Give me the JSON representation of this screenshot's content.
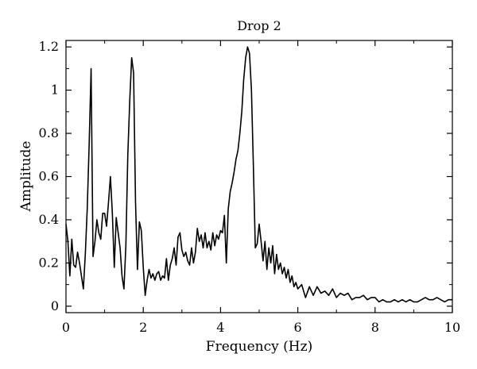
{
  "chart_data": {
    "type": "line",
    "title": "Drop 2",
    "xlabel": "Frequency (Hz)",
    "ylabel": "Amplitude",
    "xlim": [
      0,
      10
    ],
    "ylim": [
      -0.03,
      1.23
    ],
    "x_ticks": [
      0,
      2,
      4,
      6,
      8,
      10
    ],
    "x_tick_labels": [
      "0",
      "2",
      "4",
      "6",
      "8",
      "10"
    ],
    "y_ticks": [
      0,
      0.2,
      0.4,
      0.6,
      0.8,
      1,
      1.2
    ],
    "y_tick_labels": [
      "0",
      "0.2",
      "0.4",
      "0.6",
      "0.8",
      "1",
      "1.2"
    ],
    "grid": false,
    "legend": "none",
    "line_color": "#000000",
    "series": [
      {
        "x": [
          0.0,
          0.05,
          0.1,
          0.15,
          0.2,
          0.25,
          0.3,
          0.35,
          0.4,
          0.45,
          0.5,
          0.55,
          0.6,
          0.65,
          0.7,
          0.75,
          0.8,
          0.85,
          0.9,
          0.95,
          1.0,
          1.05,
          1.1,
          1.15,
          1.2,
          1.25,
          1.3,
          1.35,
          1.4,
          1.45,
          1.5,
          1.55,
          1.6,
          1.65,
          1.7,
          1.75,
          1.8,
          1.85,
          1.9,
          1.95,
          2.0,
          2.05,
          2.1,
          2.15,
          2.2,
          2.25,
          2.3,
          2.35,
          2.4,
          2.45,
          2.5,
          2.55,
          2.6,
          2.65,
          2.7,
          2.75,
          2.8,
          2.85,
          2.9,
          2.95,
          3.0,
          3.05,
          3.1,
          3.15,
          3.2,
          3.25,
          3.3,
          3.35,
          3.4,
          3.45,
          3.5,
          3.55,
          3.6,
          3.65,
          3.7,
          3.75,
          3.8,
          3.85,
          3.9,
          3.95,
          4.0,
          4.05,
          4.1,
          4.15,
          4.2,
          4.25,
          4.3,
          4.35,
          4.4,
          4.45,
          4.5,
          4.55,
          4.6,
          4.65,
          4.7,
          4.75,
          4.8,
          4.85,
          4.9,
          4.95,
          5.0,
          5.05,
          5.1,
          5.15,
          5.2,
          5.25,
          5.3,
          5.35,
          5.4,
          5.45,
          5.5,
          5.55,
          5.6,
          5.65,
          5.7,
          5.75,
          5.8,
          5.85,
          5.9,
          5.95,
          6.0,
          6.1,
          6.2,
          6.3,
          6.4,
          6.5,
          6.6,
          6.7,
          6.8,
          6.9,
          7.0,
          7.1,
          7.2,
          7.3,
          7.4,
          7.5,
          7.6,
          7.7,
          7.8,
          7.9,
          8.0,
          8.1,
          8.2,
          8.3,
          8.4,
          8.5,
          8.6,
          8.7,
          8.8,
          8.9,
          9.0,
          9.1,
          9.2,
          9.3,
          9.4,
          9.5,
          9.6,
          9.7,
          9.8,
          9.9,
          10.0
        ],
        "y": [
          0.38,
          0.3,
          0.14,
          0.31,
          0.19,
          0.18,
          0.25,
          0.2,
          0.14,
          0.08,
          0.24,
          0.45,
          0.75,
          1.1,
          0.23,
          0.3,
          0.4,
          0.34,
          0.31,
          0.43,
          0.43,
          0.37,
          0.48,
          0.6,
          0.43,
          0.18,
          0.41,
          0.34,
          0.27,
          0.14,
          0.08,
          0.28,
          0.7,
          0.95,
          1.15,
          1.08,
          0.48,
          0.17,
          0.39,
          0.35,
          0.18,
          0.05,
          0.12,
          0.17,
          0.13,
          0.15,
          0.12,
          0.15,
          0.16,
          0.12,
          0.14,
          0.13,
          0.22,
          0.12,
          0.19,
          0.22,
          0.27,
          0.19,
          0.32,
          0.34,
          0.26,
          0.23,
          0.25,
          0.21,
          0.19,
          0.27,
          0.2,
          0.25,
          0.36,
          0.3,
          0.33,
          0.27,
          0.34,
          0.27,
          0.3,
          0.26,
          0.34,
          0.28,
          0.33,
          0.31,
          0.35,
          0.34,
          0.42,
          0.2,
          0.45,
          0.53,
          0.57,
          0.62,
          0.68,
          0.72,
          0.8,
          0.9,
          1.05,
          1.15,
          1.2,
          1.17,
          1.0,
          0.65,
          0.27,
          0.29,
          0.38,
          0.3,
          0.21,
          0.3,
          0.17,
          0.27,
          0.2,
          0.28,
          0.15,
          0.24,
          0.17,
          0.2,
          0.15,
          0.18,
          0.13,
          0.17,
          0.11,
          0.14,
          0.09,
          0.11,
          0.08,
          0.1,
          0.04,
          0.09,
          0.05,
          0.09,
          0.06,
          0.07,
          0.05,
          0.08,
          0.04,
          0.06,
          0.05,
          0.06,
          0.03,
          0.04,
          0.04,
          0.05,
          0.03,
          0.04,
          0.04,
          0.02,
          0.03,
          0.02,
          0.02,
          0.03,
          0.02,
          0.03,
          0.02,
          0.03,
          0.02,
          0.02,
          0.03,
          0.04,
          0.03,
          0.03,
          0.04,
          0.03,
          0.02,
          0.03,
          0.03
        ]
      }
    ]
  }
}
